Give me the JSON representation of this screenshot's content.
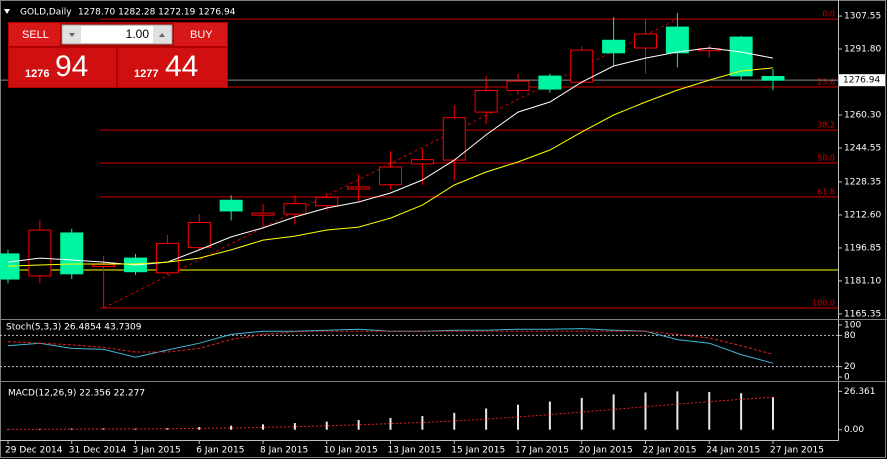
{
  "chart_data": [
    {
      "type": "candlestick",
      "title": "GOLD,Daily",
      "subtitle": "1278.70 1282.28 1272.19 1276.94",
      "categories": [
        "29 Dec 2014",
        null,
        "31 Dec 2014",
        null,
        "3 Jan 2015",
        null,
        "6 Jan 2015",
        null,
        "8 Jan 2015",
        null,
        "10 Jan 2015",
        null,
        "13 Jan 2015",
        null,
        "15 Jan 2015",
        null,
        "17 Jan 2015",
        null,
        "20 Jan 2015",
        null,
        "22 Jan 2015",
        null,
        "24 Jan 2015",
        null,
        "27 Jan 2015"
      ],
      "open": [
        1194,
        1183.5,
        1204,
        1188,
        1192,
        1185,
        1197,
        1219.6,
        1212.5,
        1213,
        1217,
        1225,
        1227,
        1237,
        1238.8,
        1261.7,
        1272,
        1278.9,
        1276,
        1296,
        1292.3,
        1302.3,
        1291,
        1297.5,
        1278.7
      ],
      "high": [
        1196,
        1210,
        1206,
        1193,
        1194,
        1203,
        1213,
        1222,
        1218,
        1222,
        1223,
        1232,
        1243,
        1244,
        1265,
        1279,
        1280,
        1280,
        1293,
        1307,
        1306,
        1309,
        1294,
        1298,
        1282.28
      ],
      "low": [
        1180,
        1180,
        1182,
        1168.2,
        1184,
        1184,
        1196,
        1210,
        1206,
        1208,
        1215,
        1219,
        1225,
        1227,
        1229,
        1256,
        1270,
        1271,
        1275,
        1284,
        1280,
        1283,
        1288,
        1277,
        1272.19
      ],
      "close": [
        1182,
        1205.4,
        1184.5,
        1189,
        1185.5,
        1199,
        1209,
        1214.5,
        1213.5,
        1218,
        1221,
        1226,
        1235.5,
        1239,
        1259,
        1272,
        1276.5,
        1272.7,
        1291.3,
        1290,
        1299,
        1290,
        1292,
        1279,
        1276.94
      ],
      "up_color": "#ff0000",
      "down_color": "#00f5a0",
      "series": [
        {
          "color": "#ffffff",
          "values": [
            1190.1,
            1192.0,
            1191.1,
            1190.1,
            1188.7,
            1190.1,
            1195.9,
            1202.1,
            1206.4,
            1211.6,
            1215.9,
            1218.8,
            1223.1,
            1229.3,
            1238.8,
            1250.8,
            1261.7,
            1266.5,
            1276.0,
            1283.7,
            1287.5,
            1290.4,
            1292.3,
            1290.4,
            1287.5
          ]
        },
        {
          "color": "#ffff00",
          "values": [
            1188.2,
            1188.7,
            1189.2,
            1189.2,
            1189.2,
            1190.1,
            1192.0,
            1195.9,
            1200.6,
            1202.5,
            1205.4,
            1206.8,
            1211.1,
            1217.3,
            1226.9,
            1233.1,
            1237.9,
            1243.6,
            1252.2,
            1260.3,
            1266.5,
            1272.2,
            1277.0,
            1281.3,
            1282.8
          ]
        }
      ],
      "fib_color": "#d00000",
      "fib_levels": [
        {
          "label": "0.0",
          "price": 1306.1
        },
        {
          "label": "23.6",
          "price": 1273.7
        },
        {
          "label": "38.2",
          "price": 1253.1
        },
        {
          "label": "50.0",
          "price": 1237.4
        },
        {
          "label": "61.8",
          "price": 1221.2
        },
        {
          "label": "100.0",
          "price": 1168.2
        }
      ],
      "level_line": 1186.3,
      "level_color": "#ffff00",
      "bid": 1276.94,
      "ylim": [
        1163.4,
        1311.4
      ],
      "yticks": [
        1307.55,
        {
          "value": 1291.8,
          "label": "1291.80"
        },
        {
          "value": 1260.3,
          "label": "1260.30"
        },
        1244.55,
        1228.35,
        {
          "value": 1212.6,
          "label": "1212.60"
        },
        {
          "value": 1196.85,
          "label": "1196.85"
        },
        {
          "value": 1181.1,
          "label": "1181.10"
        },
        1165.35
      ]
    },
    {
      "type": "line",
      "title": "Stoch(5,3,3) 26.4854 43.7309",
      "series": [
        {
          "color": "#3fb8d8",
          "dash": false,
          "values": [
            60,
            65,
            55,
            53,
            38,
            52,
            65,
            82,
            88,
            88,
            90,
            92,
            88,
            88,
            90,
            90,
            92,
            92,
            93,
            90,
            88,
            72,
            65,
            43,
            26.4854
          ]
        },
        {
          "color": "#e02020",
          "dash": true,
          "values": [
            68,
            65,
            62,
            57,
            48,
            48,
            55,
            72,
            82,
            87,
            88,
            88,
            88,
            88,
            88,
            88,
            88,
            88,
            88,
            88,
            88,
            82,
            75,
            60,
            43.7309
          ]
        }
      ],
      "ylim": [
        0,
        100
      ],
      "yticks": [
        100,
        80,
        20,
        0
      ],
      "levels": [
        80,
        20
      ]
    },
    {
      "type": "macd",
      "title": "MACD(12,26,9) 22.356 22.277",
      "histogram": {
        "color": "#e8e8e8",
        "values": [
          0.3,
          0.6,
          0.8,
          0.9,
          0.7,
          1.0,
          1.8,
          2.8,
          3.7,
          4.6,
          5.6,
          6.7,
          8.1,
          9.4,
          11.6,
          14.6,
          17.2,
          19.4,
          21.9,
          24.3,
          25.6,
          26.361,
          26.0,
          25.1,
          22.356
        ]
      },
      "signal": {
        "color": "#e02020",
        "values": [
          0.2,
          0.3,
          0.4,
          0.5,
          0.6,
          0.7,
          0.9,
          1.2,
          1.6,
          2.1,
          2.7,
          3.4,
          4.2,
          5.0,
          6.0,
          7.3,
          8.8,
          10.4,
          12.2,
          14.0,
          15.8,
          17.6,
          19.3,
          20.9,
          22.277
        ]
      },
      "ylim": [
        -5,
        28
      ],
      "yticks": [
        26.361,
        {
          "value": 0,
          "label": "0.00"
        }
      ]
    }
  ],
  "trade_panel": {
    "sell": "SELL",
    "buy": "BUY",
    "volume": "1.00",
    "bid_prefix": 1276,
    "bid_pips": 94,
    "ask_prefix": 1277,
    "ask_pips": 44
  }
}
